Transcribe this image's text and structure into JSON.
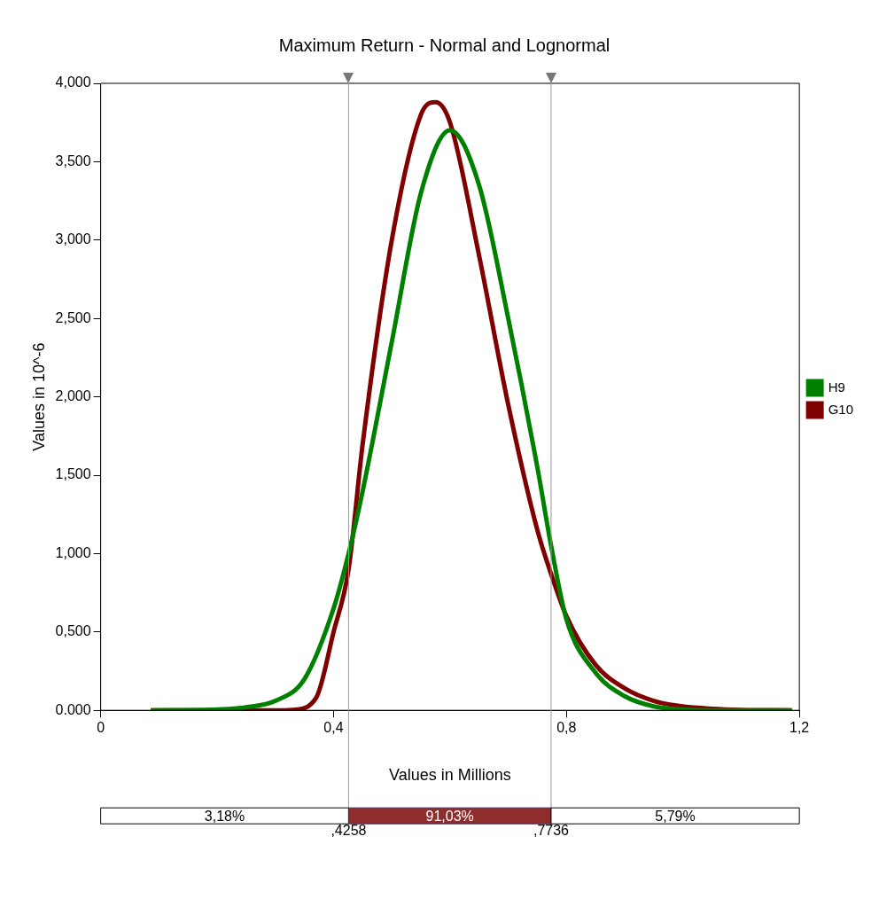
{
  "chart_data": {
    "type": "line",
    "title": "Maximum Return - Normal and Lognormal",
    "xlabel": "Values in Millions",
    "ylabel": "Values in 10^-6",
    "xlim": [
      0,
      1.2
    ],
    "xticks": [
      {
        "value": 0,
        "label": "0"
      },
      {
        "value": 0.4,
        "label": "0,4"
      },
      {
        "value": 0.8,
        "label": "0,8"
      },
      {
        "value": 1.2,
        "label": "1,2"
      }
    ],
    "ylim": [
      0,
      4
    ],
    "yticks": [
      {
        "value": 0,
        "label": "0.000"
      },
      {
        "value": 0.5,
        "label": "0,500"
      },
      {
        "value": 1,
        "label": "1,000"
      },
      {
        "value": 1.5,
        "label": "1,500"
      },
      {
        "value": 2,
        "label": "2,000"
      },
      {
        "value": 2.5,
        "label": "2,500"
      },
      {
        "value": 3,
        "label": "3,000"
      },
      {
        "value": 3.5,
        "label": "3,500"
      },
      {
        "value": 4,
        "label": "4,000"
      }
    ],
    "series": [
      {
        "name": "H9",
        "color": "#008000",
        "x": [
          0.086,
          0.2,
          0.25,
          0.3,
          0.35,
          0.4,
          0.4258,
          0.45,
          0.5,
          0.55,
          0.6,
          0.65,
          0.7,
          0.75,
          0.7736,
          0.8,
          0.85,
          0.9,
          0.95,
          1.0,
          1.05,
          1.187
        ],
        "values": [
          0,
          0.005,
          0.02,
          0.06,
          0.2,
          0.65,
          1.0,
          1.4,
          2.35,
          3.3,
          3.7,
          3.35,
          2.5,
          1.55,
          1.05,
          0.58,
          0.24,
          0.09,
          0.025,
          0.005,
          0,
          0
        ]
      },
      {
        "name": "G10",
        "color": "#800000",
        "x": [
          0.086,
          0.3,
          0.33,
          0.37,
          0.4,
          0.4258,
          0.45,
          0.5,
          0.55,
          0.575,
          0.6,
          0.65,
          0.7,
          0.75,
          0.7736,
          0.8,
          0.85,
          0.9,
          0.95,
          1.0,
          1.05,
          1.1,
          1.187
        ],
        "values": [
          0,
          0,
          0.003,
          0.08,
          0.5,
          0.9,
          1.7,
          3.0,
          3.8,
          3.88,
          3.75,
          2.9,
          1.95,
          1.15,
          0.87,
          0.6,
          0.29,
          0.14,
          0.06,
          0.025,
          0.01,
          0.003,
          0
        ]
      }
    ],
    "ref_lines": [
      {
        "axis": "x",
        "value": 0.4258,
        "color": "#999999"
      },
      {
        "axis": "x",
        "value": 0.7736,
        "color": "#999999"
      }
    ],
    "annotations": [
      "3,18%",
      "91,03%",
      "5,79%",
      ",4258",
      ",7736"
    ],
    "grid": false,
    "legend": "right",
    "marker": "none",
    "line_style": "solid"
  }
}
